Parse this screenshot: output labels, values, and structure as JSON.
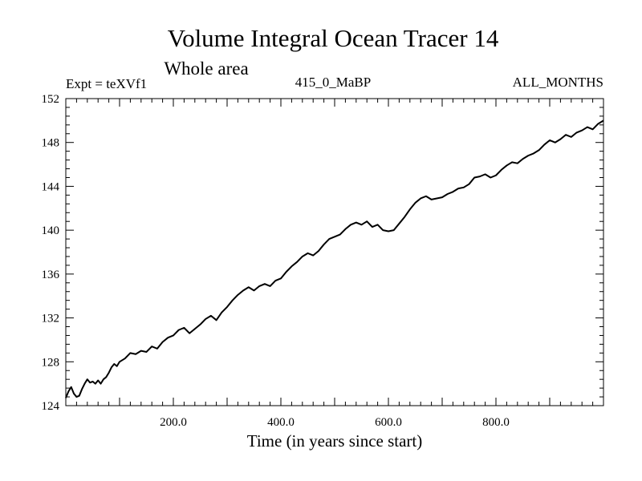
{
  "chart_data": {
    "type": "line",
    "title": "Volume Integral Ocean Tracer 14",
    "subtitle": "Whole area",
    "expt_label": "Expt = teXVf1",
    "run_label": "415_0_MaBP",
    "months_label": "ALL_MONTHS",
    "xlabel": "Time (in years since start)",
    "ylabel": "",
    "xlim": [
      0,
      1000
    ],
    "ylim": [
      124,
      152
    ],
    "x_ticks": [
      200,
      400,
      600,
      800
    ],
    "x_tick_labels": [
      "200.0",
      "400.0",
      "600.0",
      "800.0"
    ],
    "y_ticks": [
      124,
      128,
      132,
      136,
      140,
      144,
      148,
      152
    ],
    "y_tick_labels": [
      "124",
      "128",
      "132",
      "136",
      "140",
      "144",
      "148",
      "152"
    ],
    "grid": false,
    "series": [
      {
        "name": "Volume Integral Ocean Tracer 14",
        "x": [
          0,
          5,
          10,
          15,
          20,
          25,
          30,
          35,
          40,
          45,
          50,
          55,
          60,
          65,
          70,
          75,
          80,
          85,
          90,
          95,
          100,
          110,
          120,
          130,
          140,
          150,
          160,
          170,
          180,
          190,
          200,
          210,
          220,
          230,
          240,
          250,
          260,
          270,
          280,
          290,
          300,
          310,
          320,
          330,
          340,
          350,
          360,
          370,
          380,
          390,
          400,
          410,
          420,
          430,
          440,
          450,
          460,
          470,
          480,
          490,
          500,
          510,
          520,
          530,
          540,
          550,
          560,
          570,
          580,
          590,
          600,
          610,
          620,
          630,
          640,
          650,
          660,
          670,
          680,
          690,
          700,
          710,
          720,
          730,
          740,
          750,
          760,
          770,
          780,
          790,
          800,
          810,
          820,
          830,
          840,
          850,
          860,
          870,
          880,
          890,
          900,
          910,
          920,
          930,
          940,
          950,
          960,
          970,
          980,
          990,
          1000
        ],
        "y": [
          124.7,
          125.3,
          125.7,
          125.1,
          124.8,
          124.9,
          125.5,
          126.0,
          126.4,
          126.1,
          126.2,
          126.0,
          126.3,
          126.0,
          126.4,
          126.6,
          127.0,
          127.5,
          127.8,
          127.6,
          128.0,
          128.3,
          128.8,
          128.7,
          129.0,
          128.9,
          129.4,
          129.2,
          129.8,
          130.2,
          130.4,
          130.9,
          131.1,
          130.6,
          131.0,
          131.4,
          131.9,
          132.2,
          131.8,
          132.5,
          133.0,
          133.6,
          134.1,
          134.5,
          134.8,
          134.5,
          134.9,
          135.1,
          134.9,
          135.4,
          135.6,
          136.2,
          136.7,
          137.1,
          137.6,
          137.9,
          137.7,
          138.1,
          138.7,
          139.2,
          139.4,
          139.6,
          140.1,
          140.5,
          140.7,
          140.5,
          140.8,
          140.3,
          140.5,
          140.0,
          139.9,
          140.0,
          140.6,
          141.2,
          141.9,
          142.5,
          142.9,
          143.1,
          142.8,
          142.9,
          143.0,
          143.3,
          143.5,
          143.8,
          143.9,
          144.2,
          144.8,
          144.9,
          145.1,
          144.8,
          145.0,
          145.5,
          145.9,
          146.2,
          146.1,
          146.5,
          146.8,
          147.0,
          147.3,
          147.8,
          148.2,
          148.0,
          148.3,
          148.7,
          148.5,
          148.9,
          149.1,
          149.4,
          149.2,
          149.7,
          150.0
        ]
      }
    ]
  }
}
